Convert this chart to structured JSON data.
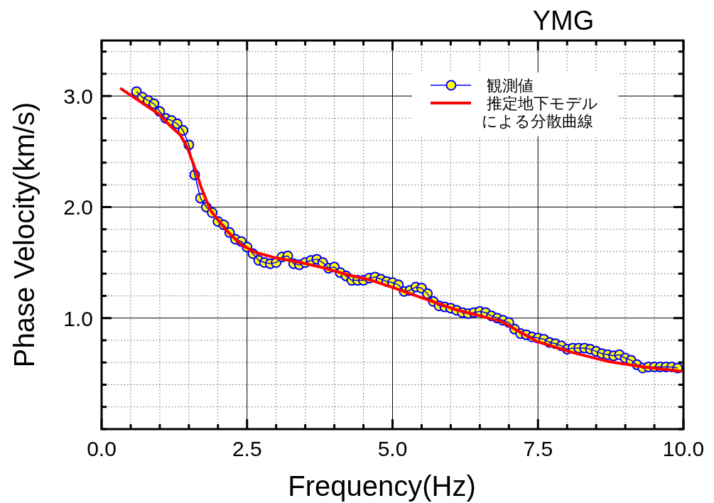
{
  "chart_data": {
    "type": "line",
    "title": "YMG",
    "xlabel": "Frequency(Hz)",
    "ylabel": "Phase Velocity(km/s)",
    "xlim": [
      0,
      10
    ],
    "ylim": [
      0,
      3.5
    ],
    "xticks": [
      {
        "value": 0,
        "label": "0.0"
      },
      {
        "value": 0.5,
        "label": null
      },
      {
        "value": 1,
        "label": null
      },
      {
        "value": 1.5,
        "label": null
      },
      {
        "value": 2,
        "label": null
      },
      2.5,
      {
        "value": 3,
        "label": null
      },
      {
        "value": 3.5,
        "label": null
      },
      {
        "value": 4,
        "label": null
      },
      {
        "value": 4.5,
        "label": null
      },
      {
        "value": 5,
        "label": "5.0"
      },
      {
        "value": 5.5,
        "label": null
      },
      {
        "value": 6,
        "label": null
      },
      {
        "value": 6.5,
        "label": null
      },
      {
        "value": 7,
        "label": null
      },
      7.5,
      {
        "value": 8,
        "label": null
      },
      {
        "value": 8.5,
        "label": null
      },
      {
        "value": 9,
        "label": null
      },
      {
        "value": 9.5,
        "label": null
      },
      {
        "value": 10,
        "label": "10.0"
      }
    ],
    "yticks": [
      {
        "value": 0,
        "label": null
      },
      {
        "value": 0.2,
        "label": null
      },
      {
        "value": 0.4,
        "label": null
      },
      {
        "value": 0.6,
        "label": null
      },
      {
        "value": 0.8,
        "label": null
      },
      {
        "value": 1,
        "label": "1.0"
      },
      {
        "value": 1.2,
        "label": null
      },
      {
        "value": 1.4,
        "label": null
      },
      {
        "value": 1.6,
        "label": null
      },
      {
        "value": 1.8,
        "label": null
      },
      {
        "value": 2,
        "label": "2.0"
      },
      {
        "value": 2.2,
        "label": null
      },
      {
        "value": 2.4,
        "label": null
      },
      {
        "value": 2.6,
        "label": null
      },
      {
        "value": 2.8,
        "label": null
      },
      {
        "value": 3,
        "label": "3.0"
      },
      {
        "value": 3.2,
        "label": null
      },
      {
        "value": 3.4,
        "label": null
      }
    ],
    "grid": true,
    "legend": "top right",
    "series": [
      {
        "name": "観測値",
        "color": "#0000ff",
        "marker": "circle",
        "colors": [
          "#ffff00",
          "#ffff00",
          "#ffff00",
          "#ffff00",
          "#ffff00",
          "#ffff00",
          "#ffff00",
          "#ffff00",
          "#ffff00",
          "#ffff00",
          "#ffff00",
          "#ffff00",
          "#ffff00",
          "#ffff00",
          "#ffff00",
          "#ffff00",
          "#ffff00",
          "#ffff00",
          "#ffff00",
          "#ffff00",
          "#ffff00",
          "#ffff00",
          "#ffff00",
          "#ffff00",
          "#ffff00",
          "#ffff00",
          "#ffff00",
          "#ffff00",
          "#ffff00",
          "#ffff00",
          "#ffff00",
          "#ffff00",
          "#ffff00",
          "#ffff00",
          "#ffff00",
          "#ffff00",
          "#ffff00",
          "#ffff00",
          "#ffff00",
          "#ffff00",
          "#ffff00",
          "#ffff00",
          "#ffff00",
          "#ffff00",
          "#ffff00",
          "#ffff00",
          "#ffff00",
          "#ffff00",
          "#ffff00",
          "#ffff00",
          "#ffff00",
          "#ffff00",
          "#ffff00",
          "#ffff00",
          "#ffff00",
          "#ffff00",
          "#ffff00",
          "#ffff00",
          "#ffff00",
          "#ffff00",
          "#ffff00",
          "#ffff00",
          "#ffff00",
          "#ffff00",
          "#ffff00",
          "#ffff00",
          "#ffff00",
          "#ffff00",
          "#ffff00",
          "#ffff00",
          "#ffff00",
          "#ffff00",
          "#ffff00",
          "#ffff00",
          "#ffff00",
          "#ffff00",
          "#ffff00",
          "#ffff00",
          "#ffff00",
          "#ffff00",
          "#ffff00",
          "#ffff00",
          "#ffff00",
          "#ffff00",
          "#ffff00",
          "#ffff00",
          "#ffff00",
          "#ffff00",
          "#ffff00",
          "#ffff00",
          "#ffff00",
          "#ffff00",
          "#ffff00",
          "#ffff00"
        ],
        "x": [
          0.6,
          0.7,
          0.8,
          0.9,
          1.0,
          1.1,
          1.2,
          1.3,
          1.4,
          1.5,
          1.6,
          1.7,
          1.8,
          1.9,
          2.0,
          2.1,
          2.2,
          2.3,
          2.4,
          2.5,
          2.6,
          2.7,
          2.8,
          2.9,
          3.0,
          3.1,
          3.2,
          3.3,
          3.4,
          3.5,
          3.6,
          3.7,
          3.8,
          3.9,
          4.0,
          4.1,
          4.2,
          4.3,
          4.4,
          4.5,
          4.6,
          4.7,
          4.8,
          4.9,
          5.0,
          5.1,
          5.2,
          5.3,
          5.4,
          5.5,
          5.6,
          5.7,
          5.8,
          5.9,
          6.0,
          6.1,
          6.2,
          6.3,
          6.4,
          6.5,
          6.6,
          6.7,
          6.8,
          6.9,
          7.0,
          7.1,
          7.2,
          7.3,
          7.4,
          7.5,
          7.6,
          7.7,
          7.8,
          7.9,
          8.0,
          8.1,
          8.2,
          8.3,
          8.4,
          8.5,
          8.6,
          8.7,
          8.8,
          8.9,
          9.0,
          9.1,
          9.2,
          9.3,
          9.4,
          9.5,
          9.6,
          9.7,
          9.8,
          9.9
        ],
        "values": [
          3.04,
          2.99,
          2.96,
          2.93,
          2.86,
          2.8,
          2.78,
          2.75,
          2.69,
          2.56,
          2.29,
          2.08,
          2.0,
          1.95,
          1.87,
          1.84,
          1.77,
          1.71,
          1.69,
          1.64,
          1.58,
          1.52,
          1.5,
          1.49,
          1.5,
          1.55,
          1.56,
          1.49,
          1.48,
          1.5,
          1.52,
          1.53,
          1.5,
          1.45,
          1.46,
          1.41,
          1.38,
          1.34,
          1.34,
          1.34,
          1.36,
          1.37,
          1.35,
          1.33,
          1.32,
          1.3,
          1.24,
          1.25,
          1.28,
          1.27,
          1.22,
          1.15,
          1.11,
          1.1,
          1.09,
          1.07,
          1.05,
          1.04,
          1.05,
          1.06,
          1.05,
          1.02,
          1.0,
          0.98,
          0.96,
          0.9,
          0.86,
          0.85,
          0.83,
          0.82,
          0.81,
          0.78,
          0.77,
          0.75,
          0.72,
          0.73,
          0.73,
          0.73,
          0.72,
          0.7,
          0.68,
          0.67,
          0.66,
          0.67,
          0.64,
          0.62,
          0.58,
          0.55,
          0.56,
          0.56,
          0.56,
          0.56,
          0.56,
          0.55
        ]
      },
      {
        "name": "推定地下モデルによる分散曲線",
        "color": "#ff0000",
        "marker": "none",
        "x": [
          0.32,
          1.0,
          1.18,
          1.35,
          1.47,
          1.59,
          1.71,
          1.87,
          2.16,
          2.4,
          2.65,
          3.01,
          3.42,
          3.83,
          4.23,
          4.64,
          5.09,
          5.25,
          6.06,
          6.87,
          7.48,
          8.09,
          8.7,
          9.31,
          9.98
        ],
        "values": [
          3.07,
          2.83,
          2.73,
          2.65,
          2.54,
          2.37,
          2.18,
          1.97,
          1.78,
          1.66,
          1.59,
          1.54,
          1.5,
          1.45,
          1.39,
          1.34,
          1.26,
          1.23,
          1.08,
          0.97,
          0.79,
          0.69,
          0.61,
          0.56,
          0.52
        ]
      }
    ]
  }
}
